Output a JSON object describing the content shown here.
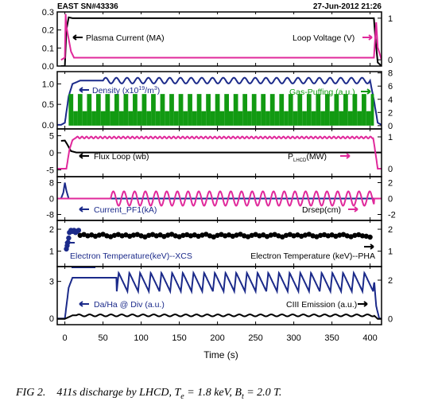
{
  "header": {
    "shot": "EAST SN#43336",
    "datetime": "27-Jun-2012 21:26"
  },
  "caption": {
    "fig": "FIG 2.",
    "text": "411s discharge by LHCD,",
    "te_sym": "T",
    "te_sub": "e",
    "te_val": "= 1.8 keV,",
    "bt_sym": "B",
    "bt_sub": "t",
    "bt_val": "= 2.0 T."
  },
  "colors": {
    "black": "#000000",
    "magenta": "#e0299b",
    "navy": "#1b2a8a",
    "green": "#129a12"
  },
  "chart_data": {
    "type": "line",
    "xlabel": "Time (s)",
    "xlim": [
      -10,
      415
    ],
    "xticks": [
      0,
      50,
      100,
      150,
      200,
      250,
      300,
      350,
      400
    ],
    "panels": [
      {
        "id": "p1",
        "left_ticks": [
          "0.3",
          "0.2",
          "0.1",
          "0.0"
        ],
        "left_lim": [
          0,
          0.3
        ],
        "left_vals": [
          0.3,
          0.2,
          0.1,
          0.0
        ],
        "right_ticks": [
          "1",
          "0"
        ],
        "right_lim": [
          -0.15,
          1.15
        ],
        "right_vals": [
          1,
          0
        ],
        "labels": {
          "left": "Plasma Current (MA)",
          "right": "Loop Voltage (V)"
        },
        "series": [
          {
            "name": "Plasma Current (MA)",
            "axis": "left",
            "color": "#000000",
            "style": "line",
            "x": [
              -5,
              0,
              2,
              5,
              10,
              405,
              407,
              410,
              415
            ],
            "y": [
              0,
              0,
              0.2,
              0.27,
              0.265,
              0.265,
              0.15,
              0.02,
              0
            ]
          },
          {
            "name": "Loop Voltage (V)",
            "axis": "right",
            "color": "#e0299b",
            "style": "line",
            "x": [
              -5,
              0,
              1,
              2,
              5,
              8,
              12,
              405,
              408,
              410,
              415
            ],
            "y": [
              0,
              0.05,
              1.1,
              0.8,
              0.5,
              0.2,
              0.05,
              0.05,
              0.9,
              0.3,
              0
            ]
          }
        ]
      },
      {
        "id": "p2",
        "left_ticks": [
          "1.0",
          "0.5",
          "0.0"
        ],
        "left_lim": [
          -0.1,
          1.3
        ],
        "left_vals": [
          1.0,
          0.5,
          0.0
        ],
        "right_ticks": [
          "8",
          "6",
          "4",
          "2",
          "0"
        ],
        "right_lim": [
          -0.5,
          8.2
        ],
        "right_vals": [
          8,
          6,
          4,
          2,
          0
        ],
        "labels": {
          "left": "Density (x10",
          "left_sup": "19",
          "left_tail": "/m",
          "left_sup2": "3",
          "left_end": ")",
          "right": "Gas-Puffing (a.u.)"
        },
        "series": [
          {
            "name": "Density",
            "axis": "left",
            "color": "#1b2a8a",
            "style": "osc",
            "base": [
              [
                -5,
                0
              ],
              [
                0,
                0.05
              ],
              [
                5,
                0.7
              ],
              [
                10,
                1.0
              ],
              [
                20,
                1.08
              ],
              [
                400,
                1.08
              ],
              [
                405,
                0.6
              ],
              [
                410,
                0.05
              ],
              [
                415,
                0
              ]
            ],
            "osc": {
              "start": 50,
              "end": 400,
              "period": 14,
              "amp": 0.07
            }
          },
          {
            "name": "Gas-Puffing",
            "axis": "right",
            "color": "#129a12",
            "style": "puff",
            "start": 5,
            "end": 405,
            "low": 2.2,
            "high": 4.8,
            "period": 12
          }
        ]
      },
      {
        "id": "p3",
        "left_ticks": [
          "5",
          "0",
          "-5"
        ],
        "left_lim": [
          -7,
          7
        ],
        "left_vals": [
          5,
          0,
          -5
        ],
        "right_ticks": [
          "1",
          "0"
        ],
        "right_lim": [
          -0.25,
          1.25
        ],
        "right_vals": [
          1,
          0
        ],
        "labels": {
          "left": "Flux Loop (wb)",
          "right_main": "P",
          "right_sub": "LHCD",
          "right_tail": "(MW)"
        },
        "series": [
          {
            "name": "Flux Loop (wb)",
            "axis": "left",
            "color": "#000000",
            "style": "line",
            "x": [
              -5,
              0,
              3,
              8,
              15,
              405,
              410,
              415
            ],
            "y": [
              3.5,
              3.6,
              2.5,
              0.5,
              0.1,
              0.1,
              0.1,
              0.1
            ]
          },
          {
            "name": "P_LHCD (MW)",
            "axis": "right",
            "color": "#e0299b",
            "style": "osc",
            "base": [
              [
                -5,
                0
              ],
              [
                2,
                0
              ],
              [
                6,
                0.6
              ],
              [
                10,
                0.9
              ],
              [
                15,
                0.98
              ],
              [
                404,
                0.98
              ],
              [
                407,
                0.5
              ],
              [
                410,
                0
              ],
              [
                415,
                0
              ]
            ],
            "osc": {
              "start": 15,
              "end": 404,
              "period": 6,
              "amp": 0.03
            }
          }
        ]
      },
      {
        "id": "p4",
        "left_ticks": [
          "8",
          "0",
          "-8"
        ],
        "left_lim": [
          -11,
          11
        ],
        "left_vals": [
          8,
          0,
          -8
        ],
        "right_ticks": [
          "2",
          "0",
          "-2"
        ],
        "right_lim": [
          -2.75,
          2.75
        ],
        "right_vals": [
          2,
          0,
          -2
        ],
        "labels": {
          "left": "Current_PF1(kA)",
          "right": "Drsep(cm)"
        },
        "series": [
          {
            "name": "Current_PF1 (kA)",
            "axis": "left",
            "color": "#1b2a8a",
            "style": "line",
            "x": [
              -5,
              -2,
              0,
              2,
              5,
              10,
              15,
              410,
              415
            ],
            "y": [
              0,
              3,
              8,
              4,
              0,
              0,
              0,
              0,
              0
            ]
          },
          {
            "name": "Drsep (cm)",
            "axis": "right",
            "color": "#e0299b",
            "style": "osc",
            "base": [
              [
                -5,
                0
              ],
              [
                60,
                0
              ],
              [
                405,
                0
              ],
              [
                415,
                0
              ]
            ],
            "osc": {
              "start": 60,
              "end": 405,
              "period": 14,
              "amp": 0.9
            }
          }
        ]
      },
      {
        "id": "p5",
        "left_ticks": [
          "2",
          "1"
        ],
        "left_lim": [
          0.3,
          2.4
        ],
        "left_vals": [
          2,
          1
        ],
        "right_ticks": [
          "2",
          "1"
        ],
        "right_lim": [
          0.3,
          2.4
        ],
        "right_vals": [
          2,
          1
        ],
        "labels": {
          "left": "Electron Temperature(keV)--XCS",
          "right": "Electron Temperature (keV)--PHA"
        },
        "series": [
          {
            "name": "Electron Temperature (keV)--XCS",
            "axis": "left",
            "color": "#1b2a8a",
            "style": "dots",
            "x": [
              2,
              3,
              4,
              5,
              6,
              8,
              10,
              12,
              14,
              16,
              18
            ],
            "y": [
              1.1,
              1.25,
              1.4,
              1.6,
              1.85,
              1.95,
              1.9,
              1.95,
              1.85,
              1.9,
              1.95
            ]
          },
          {
            "name": "Electron Temperature (keV)--PHA",
            "axis": "right",
            "color": "#000000",
            "style": "dots",
            "x": [
              20,
              25,
              30,
              35,
              40,
              45,
              50,
              55,
              60,
              65,
              70,
              75,
              80,
              85,
              90,
              95,
              100,
              105,
              110,
              115,
              120,
              125,
              130,
              135,
              140,
              145,
              150,
              155,
              160,
              165,
              170,
              175,
              180,
              185,
              190,
              195,
              200,
              205,
              210,
              215,
              220,
              225,
              230,
              235,
              240,
              245,
              250,
              255,
              260,
              265,
              270,
              275,
              280,
              285,
              290,
              295,
              300,
              305,
              310,
              315,
              320,
              325,
              330,
              335,
              340,
              345,
              350,
              355,
              360,
              365,
              370,
              375,
              380,
              385,
              390,
              395,
              400
            ],
            "y": [
              1.72,
              1.76,
              1.7,
              1.74,
              1.68,
              1.73,
              1.77,
              1.7,
              1.66,
              1.72,
              1.76,
              1.7,
              1.74,
              1.68,
              1.73,
              1.76,
              1.7,
              1.65,
              1.72,
              1.76,
              1.7,
              1.74,
              1.67,
              1.73,
              1.77,
              1.7,
              1.66,
              1.72,
              1.75,
              1.7,
              1.74,
              1.68,
              1.73,
              1.77,
              1.7,
              1.65,
              1.72,
              1.76,
              1.7,
              1.74,
              1.68,
              1.73,
              1.77,
              1.7,
              1.66,
              1.72,
              1.76,
              1.7,
              1.74,
              1.67,
              1.73,
              1.76,
              1.7,
              1.65,
              1.72,
              1.76,
              1.7,
              1.74,
              1.68,
              1.73,
              1.77,
              1.7,
              1.66,
              1.72,
              1.75,
              1.7,
              1.74,
              1.68,
              1.73,
              1.76,
              1.7,
              1.66,
              1.72,
              1.75,
              1.7,
              1.68,
              1.64
            ]
          }
        ]
      },
      {
        "id": "p6",
        "left_ticks": [
          "3",
          "0"
        ],
        "left_lim": [
          -0.5,
          4.2
        ],
        "left_vals": [
          3,
          0
        ],
        "right_ticks": [
          "2",
          "0"
        ],
        "right_lim": [
          -0.3,
          2.7
        ],
        "right_vals": [
          2,
          0
        ],
        "labels": {
          "left": "Da/Ha @ Div (a.u.)",
          "right": "CIII Emission (a.u.)"
        },
        "series": [
          {
            "name": "Da/Ha @ Div (a.u.)",
            "axis": "left",
            "color": "#1b2a8a",
            "style": "saw",
            "base": [
              [
                -5,
                0
              ],
              [
                0,
                0
              ],
              [
                5,
                2.5
              ],
              [
                10,
                3.3
              ],
              [
                60,
                3.3
              ],
              [
                405,
                3.3
              ],
              [
                408,
                1
              ],
              [
                412,
                0
              ],
              [
                415,
                0
              ]
            ],
            "saw": {
              "start": 68,
              "end": 405,
              "period": 14,
              "low": 2.2,
              "high": 3.7
            }
          },
          {
            "name": "CIII Emission (a.u.)",
            "axis": "right",
            "color": "#000000",
            "style": "osc",
            "base": [
              [
                -5,
                0
              ],
              [
                0,
                0
              ],
              [
                10,
                0.18
              ],
              [
                405,
                0.18
              ],
              [
                410,
                0
              ],
              [
                415,
                0
              ]
            ],
            "osc": {
              "start": 15,
              "end": 405,
              "period": 14,
              "amp": 0.05
            }
          }
        ]
      }
    ]
  }
}
